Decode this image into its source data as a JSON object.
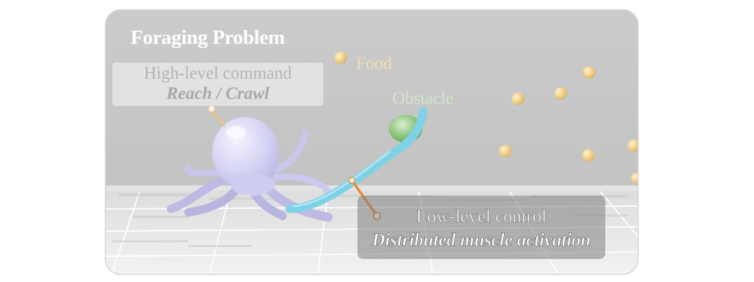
{
  "title": "Foraging Problem",
  "high_level": {
    "command": "High-level command",
    "modes": "Reach / Crawl"
  },
  "food_label": "Food",
  "obstacle_label": "Obstacle",
  "low_level": {
    "command": "Low-level control",
    "detail": "Distributed muscle activation"
  },
  "colors": {
    "sky": "#c9c9c9",
    "floor": "#e8e8e8",
    "octopus": "#d7d5f2",
    "arm_accent": "#7dd3e8",
    "food": "#f2cf82",
    "obstacle": "#8fc67e",
    "pointer": "#f0a860"
  }
}
